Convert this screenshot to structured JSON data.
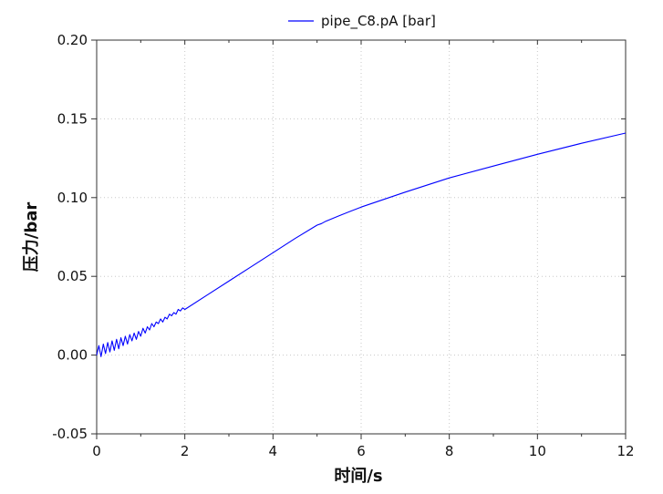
{
  "chart_data": {
    "type": "line",
    "title": "",
    "xlabel": "时间/s",
    "ylabel": "压力/bar",
    "xlim": [
      0,
      12
    ],
    "ylim": [
      -0.05,
      0.2
    ],
    "x_ticks": [
      0,
      2,
      4,
      6,
      8,
      10,
      12
    ],
    "x_tick_labels": [
      "0",
      "2",
      "4",
      "6",
      "8",
      "10",
      "12"
    ],
    "y_ticks": [
      -0.05,
      0.0,
      0.05,
      0.1,
      0.15,
      0.2
    ],
    "y_tick_labels": [
      "-0.05",
      "0.00",
      "0.05",
      "0.10",
      "0.15",
      "0.20"
    ],
    "grid": true,
    "legend_position": "top-center",
    "series": [
      {
        "name": "pipe_C8.pA [bar]",
        "color": "#0000ff",
        "x": [
          0,
          0.05,
          0.1,
          0.15,
          0.2,
          0.25,
          0.3,
          0.35,
          0.4,
          0.45,
          0.5,
          0.55,
          0.6,
          0.65,
          0.7,
          0.75,
          0.8,
          0.85,
          0.9,
          0.95,
          1.0,
          1.05,
          1.1,
          1.15,
          1.2,
          1.25,
          1.3,
          1.35,
          1.4,
          1.45,
          1.5,
          1.55,
          1.6,
          1.65,
          1.7,
          1.75,
          1.8,
          1.85,
          1.9,
          1.95,
          2.0,
          2.5,
          3.0,
          3.5,
          4.0,
          4.5,
          5.0,
          5.1,
          5.2,
          5.5,
          6.0,
          7.0,
          8.0,
          9.0,
          10.0,
          11.0,
          12.0
        ],
        "values": [
          0.0,
          0.006,
          -0.001,
          0.007,
          0.001,
          0.008,
          0.002,
          0.009,
          0.003,
          0.01,
          0.004,
          0.011,
          0.006,
          0.012,
          0.007,
          0.013,
          0.009,
          0.014,
          0.01,
          0.015,
          0.012,
          0.017,
          0.014,
          0.018,
          0.016,
          0.02,
          0.018,
          0.021,
          0.02,
          0.023,
          0.021,
          0.024,
          0.023,
          0.026,
          0.025,
          0.027,
          0.026,
          0.029,
          0.028,
          0.03,
          0.029,
          0.038,
          0.047,
          0.056,
          0.065,
          0.074,
          0.0825,
          0.0835,
          0.085,
          0.0885,
          0.094,
          0.1035,
          0.1125,
          0.12,
          0.1275,
          0.1345,
          0.141
        ]
      }
    ]
  }
}
